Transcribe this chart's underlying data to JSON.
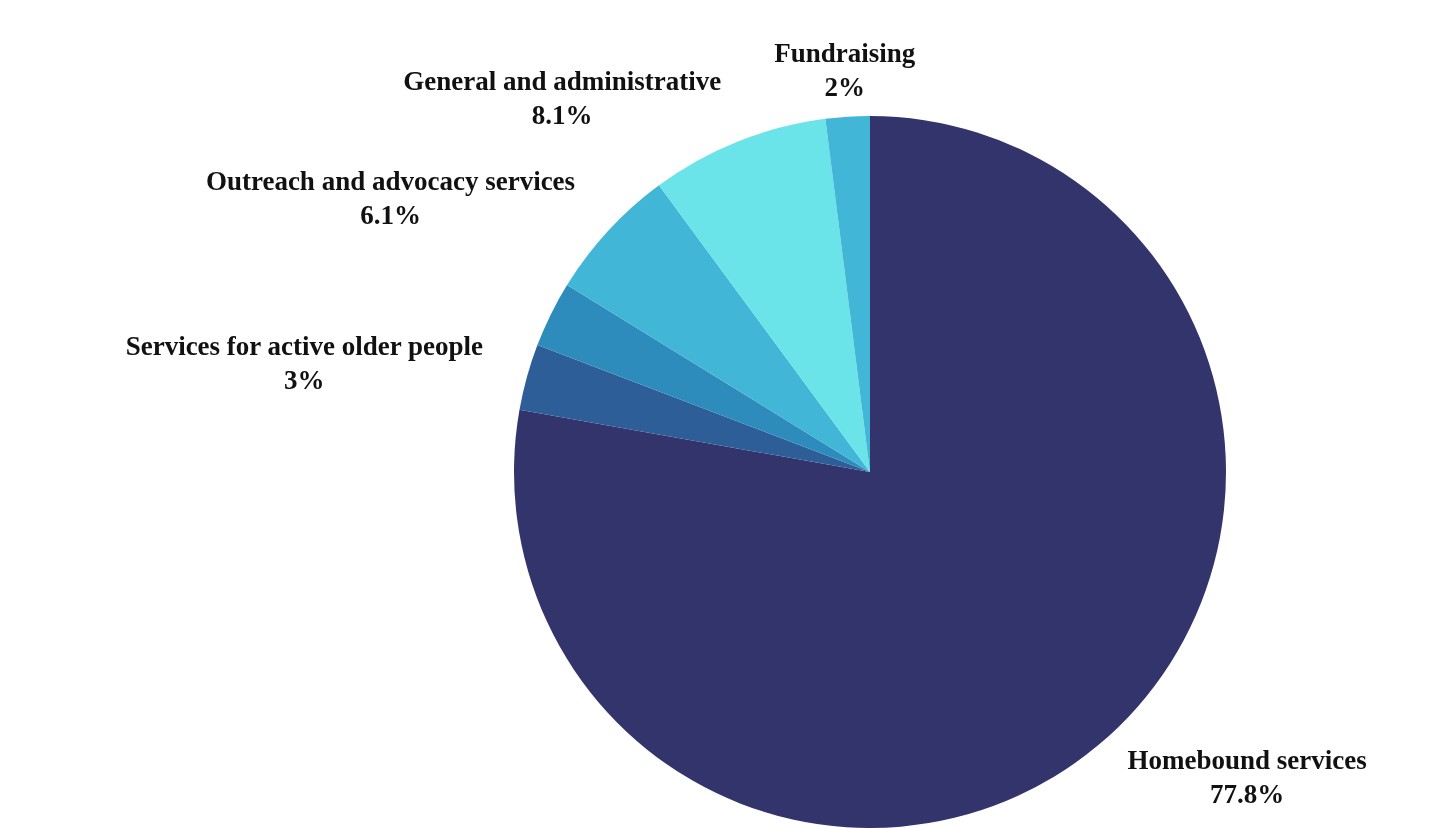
{
  "chart_data": {
    "type": "pie",
    "categories": [
      "Homebound services",
      "Services for active older people",
      null,
      "Outreach and advocacy services",
      "General and administrative",
      "Fundraising"
    ],
    "values": [
      77.8,
      3,
      3,
      6.1,
      8.1,
      2
    ],
    "value_labels": [
      "77.8%",
      "3%",
      null,
      "6.1%",
      "8.1%",
      "2%"
    ],
    "colors": [
      "#33346c",
      "#2e5e98",
      "#2e8cbd",
      "#42b6d6",
      "#6ae4e8",
      "#42b6d6"
    ],
    "legend": false
  }
}
